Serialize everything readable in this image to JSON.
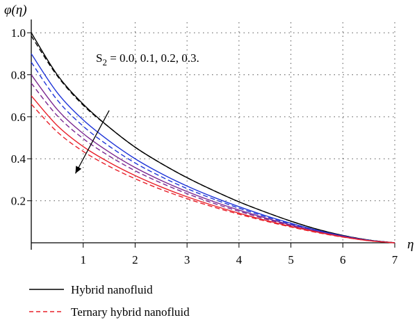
{
  "chart_data": {
    "type": "line",
    "ylabel": "φ(η)",
    "xlabel": "η",
    "xlim": [
      0,
      7
    ],
    "ylim": [
      0,
      1.05
    ],
    "xticks": [
      "1",
      "2",
      "3",
      "4",
      "5",
      "6",
      "7"
    ],
    "yticks": [
      "0.2",
      "0.4",
      "0.6",
      "0.8",
      "1.0"
    ],
    "xtick_values": [
      1,
      2,
      3,
      4,
      5,
      6,
      7
    ],
    "ytick_values": [
      0.2,
      0.4,
      0.6,
      0.8,
      1.0
    ],
    "grid": "dotted",
    "annotation": {
      "parts": [
        {
          "text": "S",
          "sub": false
        },
        {
          "text": "2",
          "sub": true
        },
        {
          "text": " = 0.0, 0.1, 0.2, 0.3.",
          "sub": false
        }
      ],
      "arrow": "decreasing direction",
      "arrow_from": [
        1.5,
        0.63
      ],
      "arrow_to": [
        0.85,
        0.33
      ]
    },
    "x": [
      0,
      0.5,
      1,
      1.5,
      2,
      2.5,
      3,
      3.5,
      4,
      4.5,
      5,
      5.5,
      6,
      6.5,
      7
    ],
    "series": [
      {
        "group": "Hybrid nanofluid",
        "S2": "0.0",
        "color": "#000000",
        "dash": false,
        "values": [
          1.0,
          0.8,
          0.66,
          0.55,
          0.455,
          0.378,
          0.31,
          0.25,
          0.195,
          0.147,
          0.103,
          0.065,
          0.035,
          0.013,
          0.0
        ]
      },
      {
        "group": "Ternary hybrid nanofluid",
        "S2": "0.0",
        "color": "#000000",
        "dash": true,
        "values": [
          0.985,
          0.795,
          0.655,
          0.55,
          0.455,
          0.378,
          0.31,
          0.25,
          0.195,
          0.147,
          0.103,
          0.065,
          0.035,
          0.013,
          0.0
        ]
      },
      {
        "group": "Hybrid nanofluid",
        "S2": "0.1",
        "color": "#1f35d8",
        "dash": false,
        "values": [
          0.9,
          0.715,
          0.585,
          0.485,
          0.4,
          0.33,
          0.27,
          0.218,
          0.172,
          0.13,
          0.093,
          0.06,
          0.033,
          0.012,
          0.0
        ]
      },
      {
        "group": "Ternary hybrid nanofluid",
        "S2": "0.1",
        "color": "#1f35d8",
        "dash": true,
        "values": [
          0.86,
          0.68,
          0.555,
          0.46,
          0.38,
          0.315,
          0.258,
          0.209,
          0.165,
          0.125,
          0.09,
          0.058,
          0.032,
          0.012,
          0.0
        ]
      },
      {
        "group": "Hybrid nanofluid",
        "S2": "0.2",
        "color": "#7a2690",
        "dash": false,
        "values": [
          0.8,
          0.635,
          0.52,
          0.432,
          0.358,
          0.297,
          0.244,
          0.197,
          0.156,
          0.119,
          0.085,
          0.055,
          0.031,
          0.011,
          0.0
        ]
      },
      {
        "group": "Ternary hybrid nanofluid",
        "S2": "0.2",
        "color": "#7a2690",
        "dash": true,
        "values": [
          0.76,
          0.605,
          0.496,
          0.413,
          0.343,
          0.285,
          0.234,
          0.189,
          0.15,
          0.114,
          0.082,
          0.053,
          0.03,
          0.011,
          0.0
        ]
      },
      {
        "group": "Hybrid nanofluid",
        "S2": "0.3",
        "color": "#e8202a",
        "dash": false,
        "values": [
          0.7,
          0.558,
          0.458,
          0.383,
          0.32,
          0.266,
          0.219,
          0.178,
          0.141,
          0.108,
          0.078,
          0.051,
          0.028,
          0.01,
          0.0
        ]
      },
      {
        "group": "Ternary hybrid nanofluid",
        "S2": "0.3",
        "color": "#e8202a",
        "dash": true,
        "values": [
          0.66,
          0.528,
          0.435,
          0.364,
          0.305,
          0.254,
          0.21,
          0.171,
          0.136,
          0.104,
          0.075,
          0.049,
          0.027,
          0.01,
          0.0
        ]
      }
    ],
    "legend": {
      "placement": "bottom",
      "entries": [
        {
          "label": "Hybrid nanofluid",
          "color": "#000000",
          "dash": false
        },
        {
          "label": "Ternary hybrid nanofluid",
          "color": "#e8202a",
          "dash": true
        }
      ]
    }
  }
}
